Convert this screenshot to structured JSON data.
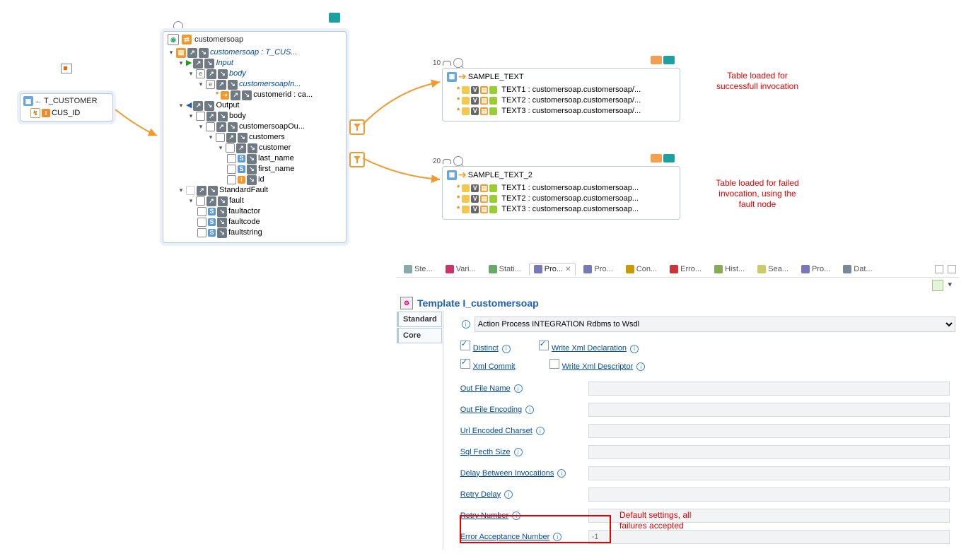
{
  "colors": {
    "red": "#e60000",
    "link_blue": "#004b9e",
    "accent_orange": "#f2992e"
  },
  "source_panel": {
    "edit_icon": "pencil",
    "title": "T_CUSTOMER",
    "field": "CUS_ID"
  },
  "customersoap_panel": {
    "title": "customersoap",
    "root": "customersoap : T_CUS...",
    "tree": {
      "input": "Input",
      "body1": "body",
      "cs_in": "customersoapIn...",
      "customerid": "customerid : ca...",
      "output": "Output",
      "body2": "body",
      "cs_out": "customersoapOu...",
      "customers": "customers",
      "customer": "customer",
      "last_name": "last_name",
      "first_name": "first_name",
      "id": "id",
      "standard_fault": "StandardFault",
      "fault": "fault",
      "faultactor": "faultactor",
      "faultcode": "faultcode",
      "faultstring": "faultstring"
    }
  },
  "sample1": {
    "caption_num": "10",
    "title": "SAMPLE_TEXT",
    "rows": [
      "TEXT1 : customersoap.customersoap/...",
      "TEXT2 : customersoap.customersoap/...",
      "TEXT3 : customersoap.customersoap/..."
    ]
  },
  "sample2": {
    "caption_num": "20",
    "title": "SAMPLE_TEXT_2",
    "rows": [
      "TEXT1 : customersoap.customersoap...",
      "TEXT2 : customersoap.customersoap...",
      "TEXT3 : customersoap.customersoap..."
    ]
  },
  "annot": {
    "a1_l1": "Table loaded for",
    "a1_l2": "successfull invocation",
    "a2_l1": "Table loaded for failed",
    "a2_l2": "invocation, using the",
    "a2_l3": "fault node",
    "a3_l1": "Default settings, all",
    "a3_l2": "failures accepted"
  },
  "tabs": {
    "items": [
      "Ste...",
      "Vari...",
      "Stati...",
      "Pro...",
      "Pro...",
      "Con...",
      "Erro...",
      "Hist...",
      "Sea...",
      "Pro...",
      "Dat..."
    ],
    "active_index": 3
  },
  "template": {
    "header": "Template I_customersoap",
    "side": {
      "standard": "Standard",
      "core": "Core"
    },
    "combo_value": "Action Process INTEGRATION Rdbms to Wsdl",
    "checks": {
      "distinct": "Distinct",
      "write_xml_decl": "Write Xml Declaration",
      "xml_commit": "Xml Commit",
      "write_xml_desc": "Write Xml Descriptor"
    },
    "fields": [
      {
        "label": "Out File Name",
        "value": ""
      },
      {
        "label": "Out File Encoding",
        "value": ""
      },
      {
        "label": "Url Encoded Charset",
        "value": ""
      },
      {
        "label": "Sql Fecth Size",
        "value": ""
      },
      {
        "label": "Delay Between Invocations",
        "value": ""
      },
      {
        "label": "Retry Delay",
        "value": ""
      },
      {
        "label": "Retry Number",
        "value": ""
      },
      {
        "label": "Error Acceptance Number",
        "value": "-1"
      }
    ]
  }
}
